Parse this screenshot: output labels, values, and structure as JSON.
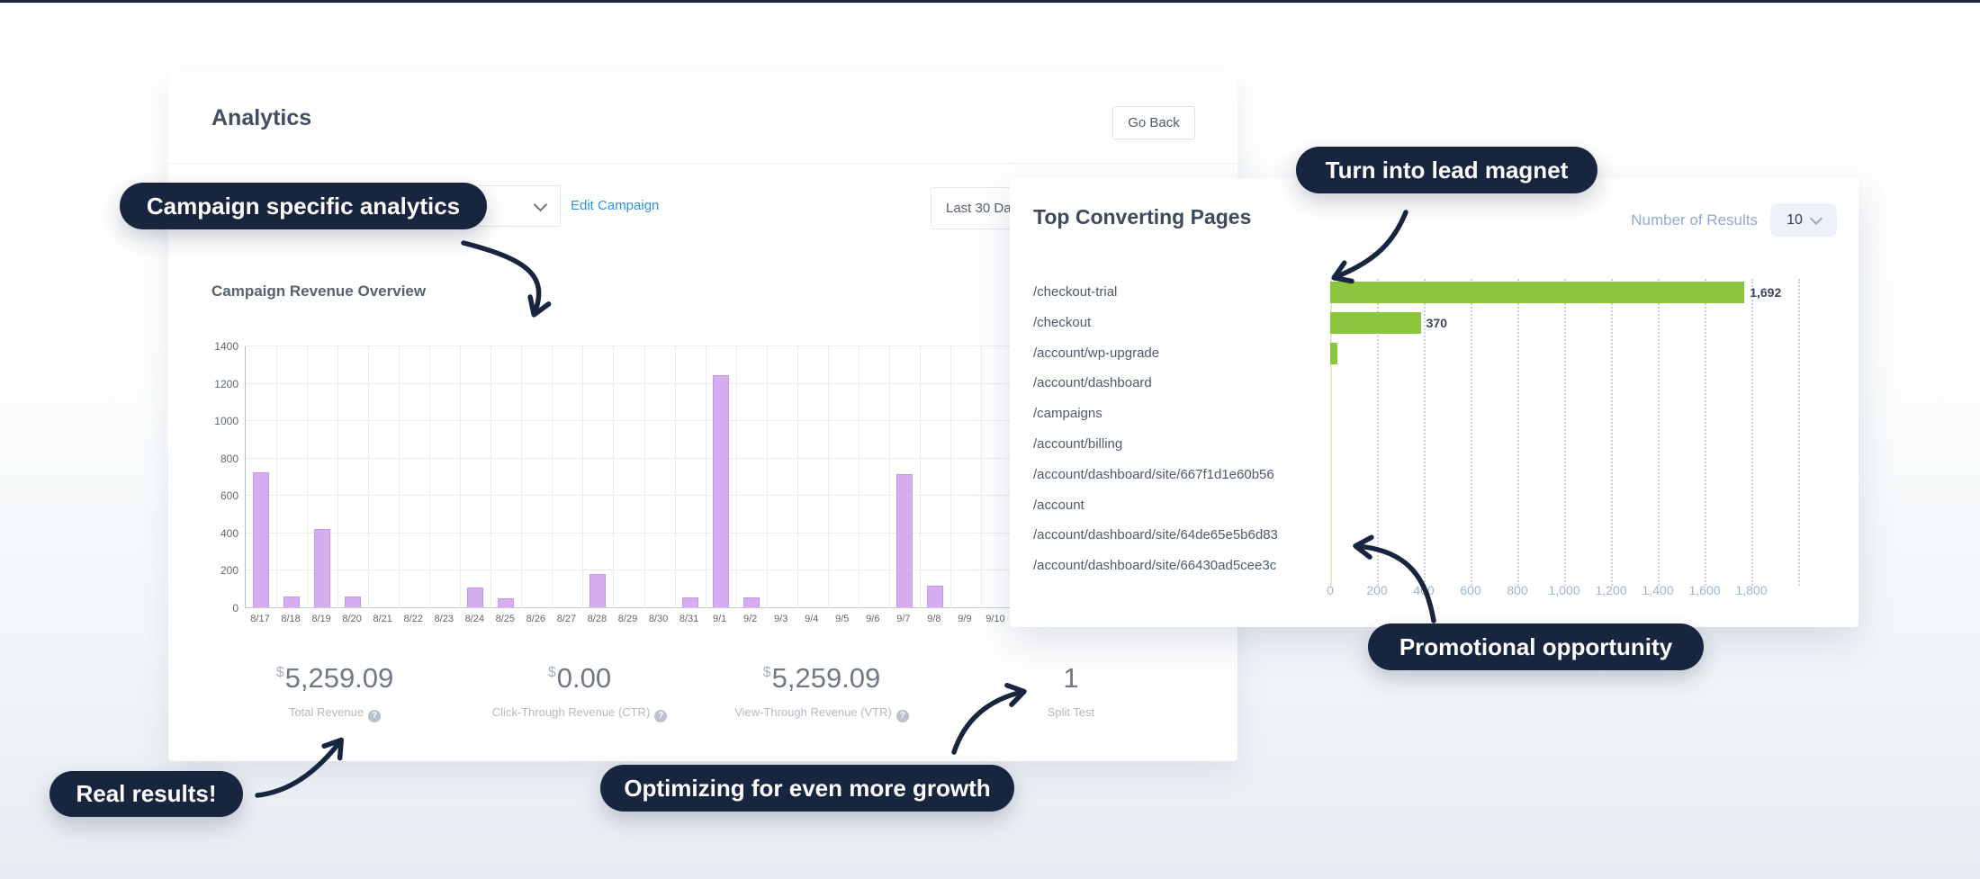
{
  "colors": {
    "navy_annotation": "#17253f",
    "purple_bar": "#d6adf1",
    "green_bar": "#8cc63e",
    "link_blue": "#2e93e6",
    "axis_blue": "#9cb3da",
    "page_bottom": "#e7ecf2"
  },
  "analytics_card": {
    "title": "Analytics",
    "go_back_label": "Go Back",
    "edit_campaign_label": "Edit Campaign",
    "date_range_value": "Last 30 Da",
    "chart_title": "Campaign Revenue Overview",
    "stats": [
      {
        "prefix": "$",
        "value": "5,259.09",
        "label": "Total Revenue",
        "help": true
      },
      {
        "prefix": "$",
        "value": "0.00",
        "label": "Click-Through Revenue (CTR)",
        "help": true
      },
      {
        "prefix": "$",
        "value": "5,259.09",
        "label": "View-Through Revenue (VTR)",
        "help": true
      },
      {
        "prefix": "",
        "value": "1",
        "label": "Split Test",
        "help": false
      }
    ]
  },
  "top_pages_card": {
    "title": "Top Converting Pages",
    "results_label": "Number of Results",
    "results_value": "10"
  },
  "callouts": [
    {
      "label": "Campaign specific analytics"
    },
    {
      "label": "Turn into lead magnet"
    },
    {
      "label": "Promotional opportunity"
    },
    {
      "label": "Real results!"
    },
    {
      "label": "Optimizing for even more growth"
    }
  ],
  "chart_data": [
    {
      "id": "campaign_revenue",
      "type": "bar",
      "title": "Campaign Revenue Overview",
      "categories": [
        "8/17",
        "8/18",
        "8/19",
        "8/20",
        "8/21",
        "8/22",
        "8/23",
        "8/24",
        "8/25",
        "8/26",
        "8/27",
        "8/28",
        "8/29",
        "8/30",
        "8/31",
        "9/1",
        "9/2",
        "9/3",
        "9/4",
        "9/5",
        "9/6",
        "9/7",
        "9/8",
        "9/9",
        "9/10"
      ],
      "values": [
        720,
        60,
        420,
        60,
        0,
        0,
        0,
        105,
        50,
        0,
        0,
        180,
        0,
        0,
        55,
        1240,
        55,
        0,
        0,
        0,
        0,
        710,
        115,
        0,
        0
      ],
      "yticks": [
        0,
        200,
        400,
        600,
        800,
        1000,
        1200,
        1400
      ],
      "ylim": [
        0,
        1400
      ],
      "grid": true,
      "bar_color": "#d6adf1"
    },
    {
      "id": "top_converting_pages",
      "type": "bar-horizontal",
      "title": "Top Converting Pages",
      "categories": [
        "/checkout-trial",
        "/checkout",
        "/account/wp-upgrade",
        "/account/dashboard",
        "/campaigns",
        "/account/billing",
        "/account/dashboard/site/667f1d1e60b56",
        "/account",
        "/account/dashboard/site/64de65e5b6d83",
        "/account/dashboard/site/66430ad5cee3c"
      ],
      "values": [
        1692,
        370,
        30,
        0,
        0,
        0,
        0,
        0,
        0,
        0
      ],
      "value_labels": [
        "1,692",
        "370",
        "",
        "",
        "",
        "",
        "",
        "",
        "",
        ""
      ],
      "xticks": [
        "0",
        "200",
        "400",
        "600",
        "800",
        "1,000",
        "1,200",
        "1,400",
        "1,600",
        "1,800"
      ],
      "xlim": [
        0,
        2000
      ],
      "grid": true,
      "bar_color": "#8cc63e"
    }
  ]
}
